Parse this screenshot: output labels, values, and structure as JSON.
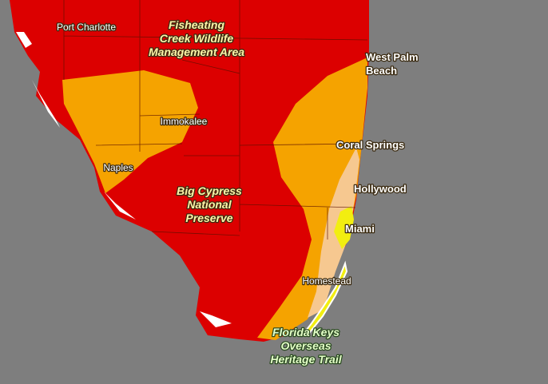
{
  "map": {
    "cities": [
      {
        "lines": [
          "Port Charlotte"
        ]
      },
      {
        "lines": [
          "West Palm",
          "Beach"
        ]
      },
      {
        "lines": [
          "Immokalee"
        ]
      },
      {
        "lines": [
          "Coral Springs"
        ]
      },
      {
        "lines": [
          "Naples"
        ]
      },
      {
        "lines": [
          "Hollywood"
        ]
      },
      {
        "lines": [
          "Miami"
        ]
      },
      {
        "lines": [
          "Homestead"
        ]
      }
    ],
    "areas": [
      {
        "lines": [
          "Fisheating",
          "Creek Wildlife",
          "Management Area"
        ]
      },
      {
        "lines": [
          "Big Cypress",
          "National",
          "Preserve"
        ]
      },
      {
        "lines": [
          "Florida Keys",
          "Overseas",
          "Heritage Trail"
        ]
      }
    ]
  }
}
